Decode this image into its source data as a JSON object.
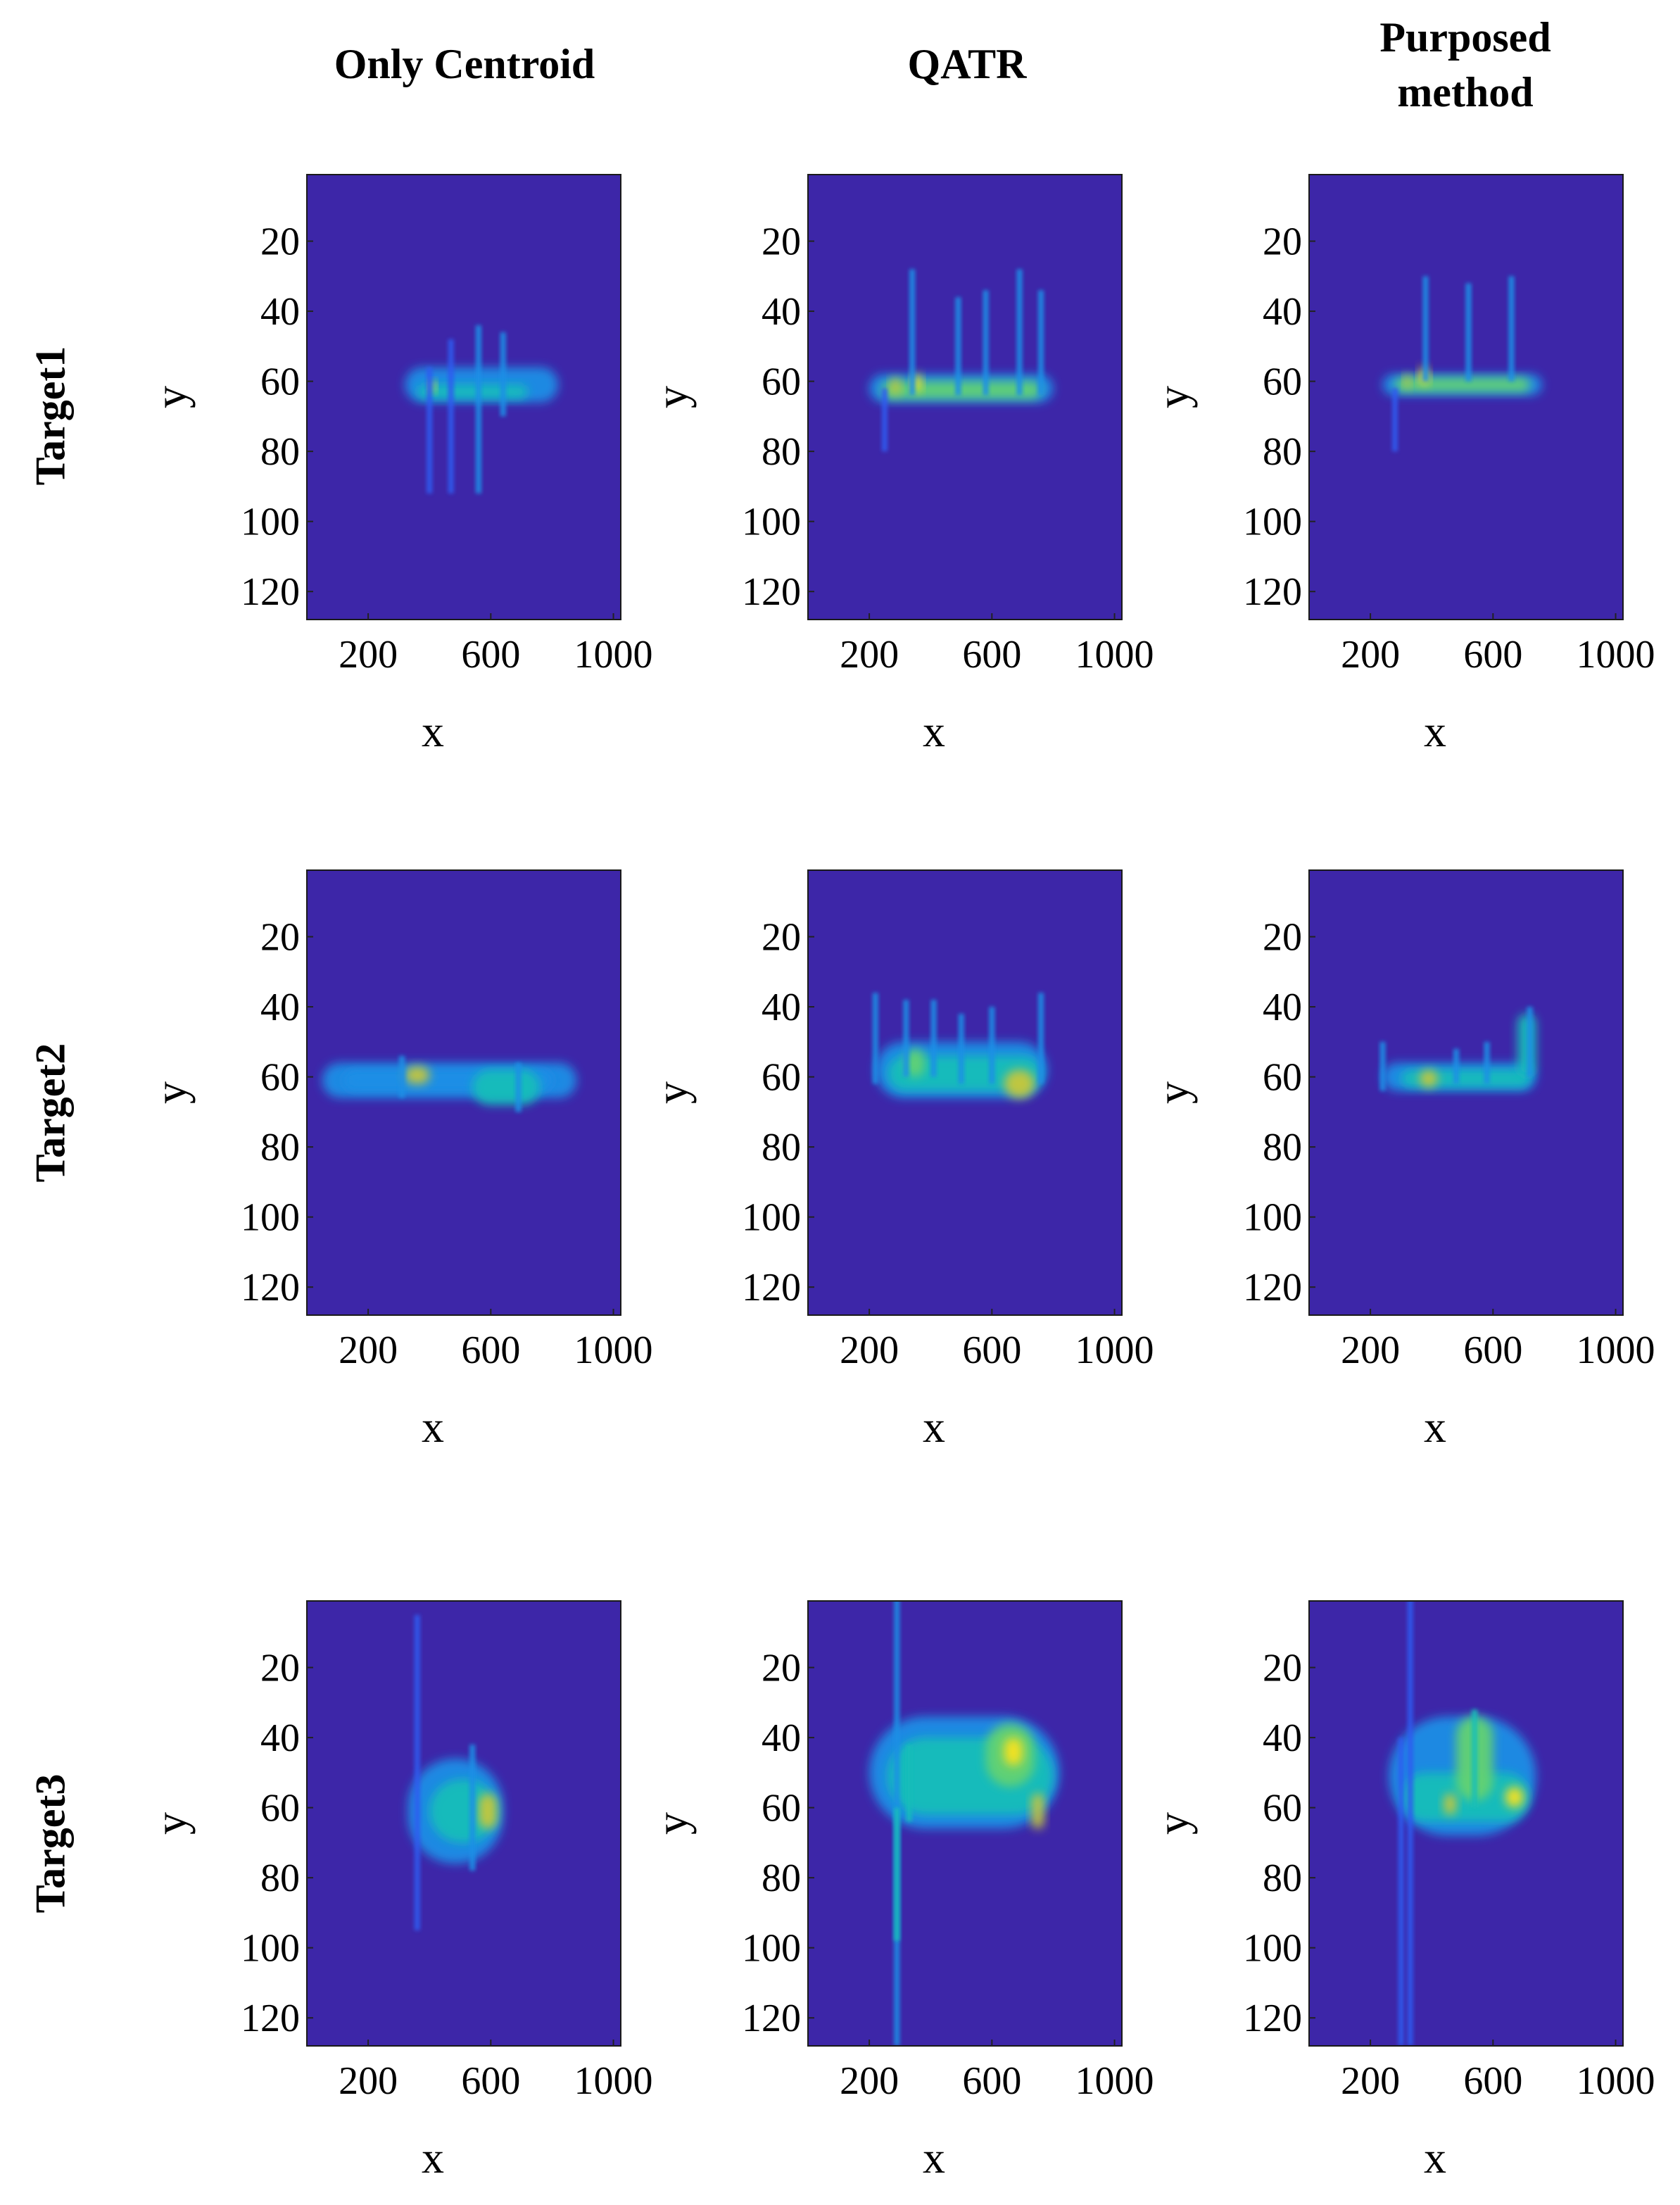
{
  "column_titles": [
    "Only Centroid",
    "QATR",
    "Purposed\nmethod"
  ],
  "row_titles": [
    "Target1",
    "Target2",
    "Target3"
  ],
  "colors": {
    "background": "#3D26A8",
    "colormap": [
      "#3D26A8",
      "#2F5BF0",
      "#1E8FE6",
      "#12BEB9",
      "#64D272",
      "#C8C73A",
      "#F9E21C"
    ]
  },
  "chart_data": [
    {
      "type": "heatmap",
      "panel": "Target1 / Only Centroid",
      "xlabel": "x",
      "ylabel": "y",
      "xticks": [
        200,
        600,
        1000
      ],
      "yticks": [
        20,
        40,
        60,
        80,
        100,
        120
      ],
      "xlim": [
        0,
        1024
      ],
      "ylim": [
        128,
        1
      ],
      "y_reversed": true,
      "blobs": [
        {
          "x": [
            320,
            820
          ],
          "y": [
            56,
            66
          ],
          "level": 0.35
        },
        {
          "x": [
            360,
            720
          ],
          "y": [
            61,
            65
          ],
          "level": 0.55
        },
        {
          "x": [
            400,
            420
          ],
          "y": [
            60,
            63
          ],
          "level": 1.0
        }
      ],
      "streaks": [
        {
          "x": 560,
          "y": [
            44,
            92
          ],
          "level": 0.25
        },
        {
          "x": 470,
          "y": [
            48,
            92
          ],
          "level": 0.2
        },
        {
          "x": 640,
          "y": [
            46,
            70
          ],
          "level": 0.25
        },
        {
          "x": 400,
          "y": [
            56,
            92
          ],
          "level": 0.15
        }
      ]
    },
    {
      "type": "heatmap",
      "panel": "Target1 / QATR",
      "xlabel": "x",
      "ylabel": "y",
      "xticks": [
        200,
        600,
        1000
      ],
      "yticks": [
        20,
        40,
        60,
        80,
        100,
        120
      ],
      "xlim": [
        0,
        1024
      ],
      "ylim": [
        128,
        1
      ],
      "y_reversed": true,
      "blobs": [
        {
          "x": [
            200,
            800
          ],
          "y": [
            58,
            66
          ],
          "level": 0.4
        },
        {
          "x": [
            240,
            760
          ],
          "y": [
            60,
            65
          ],
          "level": 0.6
        },
        {
          "x": [
            340,
            370
          ],
          "y": [
            58,
            63
          ],
          "level": 1.0
        },
        {
          "x": [
            270,
            300
          ],
          "y": [
            59,
            64
          ],
          "level": 0.75
        }
      ],
      "streaks": [
        {
          "x": 340,
          "y": [
            28,
            64
          ],
          "level": 0.35
        },
        {
          "x": 490,
          "y": [
            36,
            64
          ],
          "level": 0.35
        },
        {
          "x": 580,
          "y": [
            34,
            64
          ],
          "level": 0.35
        },
        {
          "x": 690,
          "y": [
            28,
            64
          ],
          "level": 0.35
        },
        {
          "x": 760,
          "y": [
            34,
            64
          ],
          "level": 0.3
        },
        {
          "x": 250,
          "y": [
            62,
            80
          ],
          "level": 0.15
        }
      ]
    },
    {
      "type": "heatmap",
      "panel": "Target1 / Purposed method",
      "xlabel": "x",
      "ylabel": "y",
      "xticks": [
        200,
        600,
        1000
      ],
      "yticks": [
        20,
        40,
        60,
        80,
        100,
        120
      ],
      "xlim": [
        0,
        1024
      ],
      "ylim": [
        128,
        1
      ],
      "y_reversed": true,
      "blobs": [
        {
          "x": [
            240,
            760
          ],
          "y": [
            58,
            64
          ],
          "level": 0.4
        },
        {
          "x": [
            280,
            720
          ],
          "y": [
            59,
            63
          ],
          "level": 0.6
        },
        {
          "x": [
            360,
            390
          ],
          "y": [
            56,
            61
          ],
          "level": 1.0
        },
        {
          "x": [
            310,
            330
          ],
          "y": [
            58,
            62
          ],
          "level": 0.75
        }
      ],
      "streaks": [
        {
          "x": 380,
          "y": [
            30,
            60
          ],
          "level": 0.3
        },
        {
          "x": 520,
          "y": [
            32,
            60
          ],
          "level": 0.35
        },
        {
          "x": 660,
          "y": [
            30,
            60
          ],
          "level": 0.35
        },
        {
          "x": 280,
          "y": [
            62,
            80
          ],
          "level": 0.15
        }
      ]
    },
    {
      "type": "heatmap",
      "panel": "Target2 / Only Centroid",
      "xlabel": "x",
      "ylabel": "y",
      "xticks": [
        200,
        600,
        1000
      ],
      "yticks": [
        20,
        40,
        60,
        80,
        100,
        120
      ],
      "xlim": [
        0,
        1024
      ],
      "ylim": [
        128,
        1
      ],
      "y_reversed": true,
      "blobs": [
        {
          "x": [
            50,
            880
          ],
          "y": [
            56,
            66
          ],
          "level": 0.25
        },
        {
          "x": [
            120,
            800
          ],
          "y": [
            58,
            64
          ],
          "level": 0.4
        },
        {
          "x": [
            320,
            400
          ],
          "y": [
            57,
            62
          ],
          "level": 0.75
        },
        {
          "x": [
            540,
            760
          ],
          "y": [
            58,
            68
          ],
          "level": 0.5
        }
      ],
      "streaks": [
        {
          "x": 310,
          "y": [
            54,
            66
          ],
          "level": 0.25
        },
        {
          "x": 690,
          "y": [
            56,
            70
          ],
          "level": 0.3
        }
      ]
    },
    {
      "type": "heatmap",
      "panel": "Target2 / QATR",
      "xlabel": "x",
      "ylabel": "y",
      "xticks": [
        200,
        600,
        1000
      ],
      "yticks": [
        20,
        40,
        60,
        80,
        100,
        120
      ],
      "xlim": [
        0,
        1024
      ],
      "ylim": [
        128,
        1
      ],
      "y_reversed": true,
      "blobs": [
        {
          "x": [
            220,
            780
          ],
          "y": [
            50,
            66
          ],
          "level": 0.4
        },
        {
          "x": [
            260,
            760
          ],
          "y": [
            54,
            64
          ],
          "level": 0.55
        },
        {
          "x": [
            640,
            740
          ],
          "y": [
            58,
            66
          ],
          "level": 0.8
        },
        {
          "x": [
            320,
            380
          ],
          "y": [
            52,
            60
          ],
          "level": 0.65
        }
      ],
      "streaks": [
        {
          "x": 220,
          "y": [
            36,
            62
          ],
          "level": 0.3
        },
        {
          "x": 320,
          "y": [
            38,
            60
          ],
          "level": 0.4
        },
        {
          "x": 410,
          "y": [
            38,
            60
          ],
          "level": 0.35
        },
        {
          "x": 500,
          "y": [
            42,
            62
          ],
          "level": 0.35
        },
        {
          "x": 600,
          "y": [
            40,
            62
          ],
          "level": 0.35
        },
        {
          "x": 760,
          "y": [
            36,
            62
          ],
          "level": 0.35
        }
      ]
    },
    {
      "type": "heatmap",
      "panel": "Target2 / Purposed method",
      "xlabel": "x",
      "ylabel": "y",
      "xticks": [
        200,
        600,
        1000
      ],
      "yticks": [
        20,
        40,
        60,
        80,
        100,
        120
      ],
      "xlim": [
        0,
        1024
      ],
      "ylim": [
        128,
        1
      ],
      "y_reversed": true,
      "blobs": [
        {
          "x": [
            240,
            740
          ],
          "y": [
            56,
            64
          ],
          "level": 0.4
        },
        {
          "x": [
            300,
            720
          ],
          "y": [
            58,
            63
          ],
          "level": 0.55
        },
        {
          "x": [
            360,
            420
          ],
          "y": [
            58,
            63
          ],
          "level": 0.8
        },
        {
          "x": [
            680,
            740
          ],
          "y": [
            42,
            60
          ],
          "level": 0.45
        }
      ],
      "streaks": [
        {
          "x": 240,
          "y": [
            50,
            64
          ],
          "level": 0.25
        },
        {
          "x": 480,
          "y": [
            52,
            62
          ],
          "level": 0.3
        },
        {
          "x": 580,
          "y": [
            50,
            62
          ],
          "level": 0.3
        },
        {
          "x": 720,
          "y": [
            40,
            60
          ],
          "level": 0.4
        }
      ]
    },
    {
      "type": "heatmap",
      "panel": "Target3 / Only Centroid",
      "xlabel": "x",
      "ylabel": "y",
      "xticks": [
        200,
        600,
        1000
      ],
      "yticks": [
        20,
        40,
        60,
        80,
        100,
        120
      ],
      "xlim": [
        0,
        1024
      ],
      "ylim": [
        128,
        1
      ],
      "y_reversed": true,
      "blobs": [
        {
          "x": [
            330,
            640
          ],
          "y": [
            46,
            76
          ],
          "level": 0.3
        },
        {
          "x": [
            400,
            620
          ],
          "y": [
            52,
            70
          ],
          "level": 0.45
        },
        {
          "x": [
            560,
            620
          ],
          "y": [
            56,
            66
          ],
          "level": 0.85
        }
      ],
      "streaks": [
        {
          "x": 360,
          "y": [
            5,
            95
          ],
          "level": 0.15
        },
        {
          "x": 540,
          "y": [
            42,
            78
          ],
          "level": 0.3
        }
      ]
    },
    {
      "type": "heatmap",
      "panel": "Target3 / QATR",
      "xlabel": "x",
      "ylabel": "y",
      "xticks": [
        200,
        600,
        1000
      ],
      "yticks": [
        20,
        40,
        60,
        80,
        100,
        120
      ],
      "xlim": [
        0,
        1024
      ],
      "ylim": [
        128,
        1
      ],
      "y_reversed": true,
      "blobs": [
        {
          "x": [
            200,
            820
          ],
          "y": [
            34,
            66
          ],
          "level": 0.35
        },
        {
          "x": [
            260,
            800
          ],
          "y": [
            40,
            62
          ],
          "level": 0.5
        },
        {
          "x": [
            580,
            740
          ],
          "y": [
            36,
            54
          ],
          "level": 0.7
        },
        {
          "x": [
            640,
            700
          ],
          "y": [
            40,
            48
          ],
          "level": 1.0
        },
        {
          "x": [
            730,
            770
          ],
          "y": [
            56,
            66
          ],
          "level": 0.85
        }
      ],
      "streaks": [
        {
          "x": 290,
          "y": [
            0,
            128
          ],
          "level": 0.3
        },
        {
          "x": 290,
          "y": [
            60,
            98
          ],
          "level": 0.45
        },
        {
          "x": 330,
          "y": [
            42,
            64
          ],
          "level": 0.5
        }
      ]
    },
    {
      "type": "heatmap",
      "panel": "Target3 / Purposed method",
      "xlabel": "x",
      "ylabel": "y",
      "xticks": [
        200,
        600,
        1000
      ],
      "yticks": [
        20,
        40,
        60,
        80,
        100,
        120
      ],
      "xlim": [
        0,
        1024
      ],
      "ylim": [
        128,
        1
      ],
      "y_reversed": true,
      "blobs": [
        {
          "x": [
            260,
            740
          ],
          "y": [
            34,
            68
          ],
          "level": 0.35
        },
        {
          "x": [
            300,
            720
          ],
          "y": [
            50,
            64
          ],
          "level": 0.5
        },
        {
          "x": [
            480,
            600
          ],
          "y": [
            34,
            58
          ],
          "level": 0.65
        },
        {
          "x": [
            440,
            480
          ],
          "y": [
            56,
            62
          ],
          "level": 0.9
        },
        {
          "x": [
            640,
            700
          ],
          "y": [
            54,
            60
          ],
          "level": 1.0
        }
      ],
      "streaks": [
        {
          "x": 330,
          "y": [
            0,
            128
          ],
          "level": 0.2
        },
        {
          "x": 300,
          "y": [
            40,
            128
          ],
          "level": 0.15
        },
        {
          "x": 540,
          "y": [
            32,
            60
          ],
          "level": 0.5
        }
      ]
    }
  ]
}
